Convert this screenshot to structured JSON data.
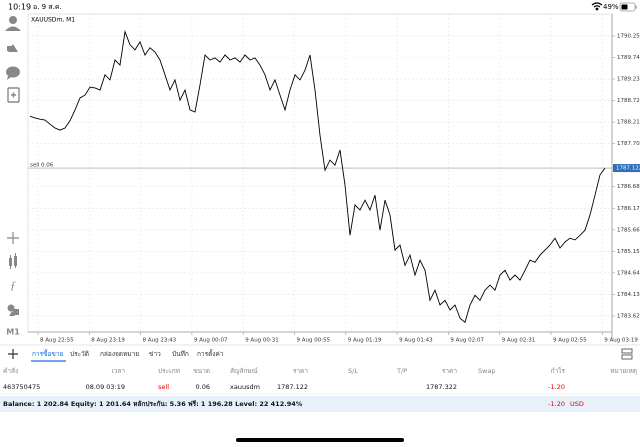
{
  "status_bar": {
    "time": "10:19",
    "date": "อ. 9 ส.ค.",
    "battery": "49%"
  },
  "toolbar": {
    "timeframe": "M1"
  },
  "chart_data": {
    "type": "line",
    "title": "XAUUSDm, M1",
    "color": "#000000",
    "xtick_labels": [
      "8 Aug 22:55",
      "8 Aug 23:19",
      "8 Aug 23:43",
      "9 Aug 00:07",
      "9 Aug 00:31",
      "9 Aug 00:55",
      "9 Aug 01:19",
      "9 Aug 01:43",
      "9 Aug 02:07",
      "9 Aug 02:31",
      "9 Aug 02:55",
      "9 Aug 03:19"
    ],
    "values": [
      1788.35,
      1788.31,
      1788.28,
      1788.26,
      1788.16,
      1788.07,
      1788.02,
      1788.07,
      1788.24,
      1788.5,
      1788.78,
      1788.85,
      1789.04,
      1789.02,
      1788.97,
      1789.33,
      1789.21,
      1789.68,
      1789.56,
      1790.35,
      1790.04,
      1789.92,
      1790.11,
      1789.8,
      1789.97,
      1789.87,
      1789.68,
      1789.33,
      1788.97,
      1789.21,
      1788.73,
      1788.97,
      1788.5,
      1788.45,
      1789.09,
      1789.8,
      1789.68,
      1789.73,
      1789.63,
      1789.8,
      1789.68,
      1789.73,
      1789.63,
      1789.8,
      1789.68,
      1789.73,
      1789.56,
      1789.33,
      1788.97,
      1789.21,
      1788.85,
      1788.5,
      1788.97,
      1789.33,
      1789.21,
      1789.44,
      1789.8,
      1788.97,
      1787.9,
      1787.07,
      1787.31,
      1787.19,
      1787.55,
      1786.72,
      1785.53,
      1786.25,
      1786.13,
      1786.36,
      1786.13,
      1786.48,
      1785.65,
      1786.36,
      1786.01,
      1785.18,
      1785.3,
      1784.82,
      1785.06,
      1784.59,
      1784.94,
      1784.7,
      1783.99,
      1784.23,
      1783.88,
      1783.99,
      1783.76,
      1783.88,
      1783.57,
      1783.47,
      1783.88,
      1784.11,
      1783.99,
      1784.23,
      1784.35,
      1784.23,
      1784.59,
      1784.7,
      1784.47,
      1784.59,
      1784.47,
      1784.7,
      1784.94,
      1784.89,
      1785.06,
      1785.18,
      1785.3,
      1785.46,
      1785.23,
      1785.37,
      1785.46,
      1785.42,
      1785.53,
      1785.65,
      1786.01,
      1786.48,
      1786.96,
      1787.12
    ],
    "ylim": [
      1783.24,
      1790.77
    ],
    "yticks": [
      {
        "value": 1790.25,
        "label": "1790.250"
      },
      {
        "value": 1789.74,
        "label": "1789.740"
      },
      {
        "value": 1789.23,
        "label": "1789.230"
      },
      {
        "value": 1788.72,
        "label": "1788.720"
      },
      {
        "value": 1788.21,
        "label": "1788.210"
      },
      {
        "value": 1787.7,
        "label": "1787.700"
      },
      {
        "value": 1786.68,
        "label": "1786.680"
      },
      {
        "value": 1786.17,
        "label": "1786.170"
      },
      {
        "value": 1785.66,
        "label": "1785.660"
      },
      {
        "value": 1785.15,
        "label": "1785.150"
      },
      {
        "value": 1784.64,
        "label": "1784.640"
      },
      {
        "value": 1784.13,
        "label": "1784.130"
      },
      {
        "value": 1783.62,
        "label": "1783.620"
      }
    ],
    "grid": true,
    "last_price": {
      "value": 1787.122,
      "label": "1787.122"
    },
    "order_line": {
      "value": 1787.122,
      "label": "sell 0.06"
    }
  },
  "tabs": [
    "การซื้อขาย",
    "ประวัติ",
    "กล่องจดหมาย",
    "ข่าว",
    "บันทึก",
    "การตั้งค่า"
  ],
  "table": {
    "columns": [
      "คำสั่ง",
      "เวลา",
      "ประเภท",
      "ขนาด",
      "สัญลักษณ์",
      "ราคา",
      "S/L",
      "T/P",
      "ราคา",
      "Swap",
      "กำไร",
      "หมายเหตุ"
    ],
    "rows": [
      {
        "order": "463750475",
        "time": "08.09 03:19",
        "type": "sell",
        "volume": "0.06",
        "symbol": "xauusdm",
        "price": "1787.122",
        "current_price": "1787.322",
        "profit": "-1.20"
      }
    ]
  },
  "summary": {
    "text": "Balance: 1 202.84 Equity: 1 201.64 หลักประกัน: 5.36 ฟรี: 1 196.28 Level: 22 412.94%",
    "profit": "-1.20",
    "currency": "USD"
  }
}
